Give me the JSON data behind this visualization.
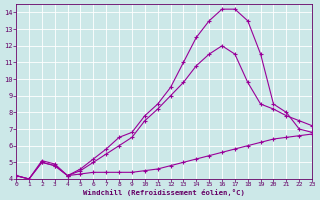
{
  "background_color": "#cce8e8",
  "grid_color": "#aadddd",
  "line_color": "#990099",
  "xlabel": "Windchill (Refroidissement éolien,°C)",
  "xlim": [
    0,
    23
  ],
  "ylim": [
    4,
    14.5
  ],
  "yticks": [
    4,
    5,
    6,
    7,
    8,
    9,
    10,
    11,
    12,
    13,
    14
  ],
  "xticks": [
    0,
    1,
    2,
    3,
    4,
    5,
    6,
    7,
    8,
    9,
    10,
    11,
    12,
    13,
    14,
    15,
    16,
    17,
    18,
    19,
    20,
    21,
    22,
    23
  ],
  "series1_x": [
    0,
    1,
    2,
    3,
    4,
    5,
    6,
    7,
    8,
    9,
    10,
    11,
    12,
    13,
    14,
    15,
    16,
    17,
    18,
    19,
    20,
    21,
    22,
    23
  ],
  "series1_y": [
    4.2,
    4.0,
    5.0,
    4.8,
    4.2,
    4.3,
    4.4,
    4.4,
    4.4,
    4.4,
    4.5,
    4.6,
    4.8,
    5.0,
    5.2,
    5.4,
    5.6,
    5.8,
    6.0,
    6.2,
    6.4,
    6.5,
    6.6,
    6.7
  ],
  "series2_x": [
    0,
    1,
    2,
    3,
    4,
    5,
    6,
    7,
    8,
    9,
    10,
    11,
    12,
    13,
    14,
    15,
    16,
    17,
    18,
    19,
    20,
    21,
    22,
    23
  ],
  "series2_y": [
    4.2,
    4.0,
    5.0,
    4.8,
    4.2,
    4.5,
    5.0,
    5.5,
    6.0,
    6.5,
    7.5,
    8.2,
    9.0,
    9.8,
    10.8,
    11.5,
    12.0,
    11.5,
    9.8,
    8.5,
    8.2,
    7.8,
    7.5,
    7.2
  ],
  "series3_x": [
    0,
    1,
    2,
    3,
    4,
    5,
    6,
    7,
    8,
    9,
    10,
    11,
    12,
    13,
    14,
    15,
    16,
    17,
    18,
    19,
    20,
    21,
    22,
    23
  ],
  "series3_y": [
    4.2,
    4.0,
    5.1,
    4.9,
    4.2,
    4.6,
    5.2,
    5.8,
    6.5,
    6.8,
    7.8,
    8.5,
    9.5,
    11.0,
    12.5,
    13.5,
    14.2,
    14.2,
    13.5,
    11.5,
    8.5,
    8.0,
    7.0,
    6.8
  ]
}
